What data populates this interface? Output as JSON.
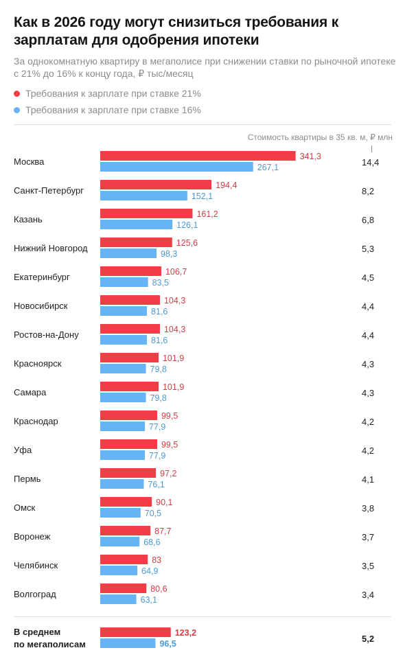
{
  "title": "Как в 2026 году могут снизиться требования к зарплатам для одобрения ипотеки",
  "subtitle": "За однокомнатную квартиру в мегаполисе при снижении ставки по рыночной ипотеке с 21% до 16% к концу года, ₽ тыс/месяц",
  "legend": [
    {
      "label": "Требования к зарплате при ставке 21%",
      "color": "#f23c46"
    },
    {
      "label": "Требования к зарплате при ставке 16%",
      "color": "#66b3f5"
    }
  ],
  "cost_header": "Стоимость квартиры в 35 кв. м, ₽ млн",
  "chart_data": {
    "type": "bar",
    "orientation": "horizontal",
    "categories": [
      "Москва",
      "Санкт-Петербург",
      "Казань",
      "Нижний Новгород",
      "Екатеринбург",
      "Новосибирск",
      "Ростов-на-Дону",
      "Красноярск",
      "Самара",
      "Краснодар",
      "Уфа",
      "Пермь",
      "Омск",
      "Воронеж",
      "Челябинск",
      "Волгоград"
    ],
    "series": [
      {
        "name": "Требования к зарплате при ставке 21%",
        "color": "#f23c46",
        "values": [
          341.3,
          194.4,
          161.2,
          125.6,
          106.7,
          104.3,
          104.3,
          101.9,
          101.9,
          99.5,
          99.5,
          97.2,
          90.1,
          87.7,
          83,
          80.6
        ]
      },
      {
        "name": "Требования к зарплате при ставке 16%",
        "color": "#66b3f5",
        "values": [
          267.1,
          152.1,
          126.1,
          98.3,
          83.5,
          81.6,
          81.6,
          79.8,
          79.8,
          77.9,
          77.9,
          76.1,
          70.5,
          68.6,
          64.9,
          63.1
        ]
      }
    ],
    "value_labels_21": [
      "341,3",
      "194,4",
      "161,2",
      "125,6",
      "106,7",
      "104,3",
      "104,3",
      "101,9",
      "101,9",
      "99,5",
      "99,5",
      "97,2",
      "90,1",
      "87,7",
      "83",
      "80,6"
    ],
    "value_labels_16": [
      "267,1",
      "152,1",
      "126,1",
      "98,3",
      "83,5",
      "81,6",
      "81,6",
      "79,8",
      "79,8",
      "77,9",
      "77,9",
      "76,1",
      "70,5",
      "68,6",
      "64,9",
      "63,1"
    ],
    "cost_labels": [
      "14,4",
      "8,2",
      "6,8",
      "5,3",
      "4,5",
      "4,4",
      "4,4",
      "4,3",
      "4,3",
      "4,2",
      "4,2",
      "4,1",
      "3,8",
      "3,7",
      "3,5",
      "3,4"
    ],
    "average": {
      "label_line1": "В среднем",
      "label_line2": "по мегаполисам",
      "value_21": 123.2,
      "value_21_label": "123,2",
      "value_16": 96.5,
      "value_16_label": "96,5",
      "cost_label": "5,2"
    }
  }
}
